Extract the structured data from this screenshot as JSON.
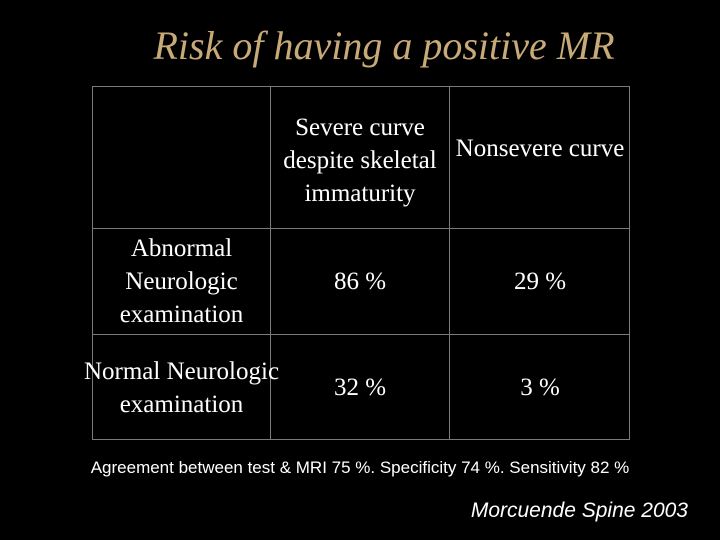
{
  "slide": {
    "title": "Risk of having a positive MR",
    "footnote": "Agreement between test & MRI 75 %. Specificity 74 %. Sensitivity 82 %",
    "citation": "Morcuende Spine 2003"
  },
  "table": {
    "corner": "",
    "columns": [
      "Severe curve despite skeletal immaturity",
      "Nonsevere curve"
    ],
    "rows": [
      {
        "label": "Abnormal Neurologic examination",
        "values": [
          "86 %",
          "29 %"
        ]
      },
      {
        "label": "Normal Neurologic examination",
        "values": [
          "32 %",
          "3 %"
        ]
      }
    ]
  },
  "colors": {
    "background": "#000000",
    "title": "#c8a978",
    "text": "#ffffff",
    "grid": "#7a7a7a"
  }
}
